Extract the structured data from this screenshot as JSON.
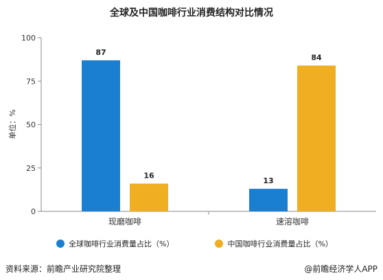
{
  "chart_data": {
    "type": "bar",
    "title": "全球及中国咖啡行业消费结构对比情况",
    "ylabel": "单位：%",
    "xlabel": "",
    "categories": [
      "现磨咖啡",
      "速溶咖啡"
    ],
    "series": [
      {
        "name": "全球咖啡行业消费量占比（%）",
        "values": [
          87,
          13
        ],
        "color": "#1b7fd1"
      },
      {
        "name": "中国咖啡行业消费量占比（%）",
        "values": [
          16,
          84
        ],
        "color": "#f0ae22"
      }
    ],
    "ylim": [
      0,
      100
    ],
    "yticks": [
      0,
      25,
      50,
      75,
      100
    ],
    "grid": false,
    "legend": "bottom"
  },
  "footer": {
    "source": "资料来源：前瞻产业研究院整理",
    "credit": "@前瞻经济学人APP"
  }
}
